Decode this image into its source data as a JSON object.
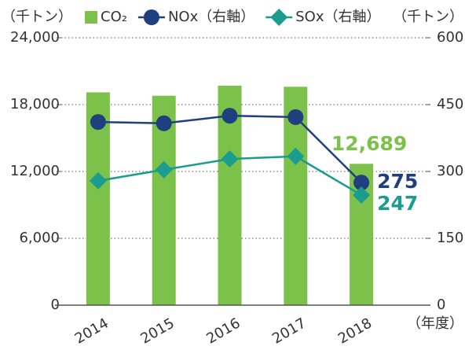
{
  "chart_data": {
    "type": "bar_line",
    "y_label": "（千トン）",
    "y2_label": "（千トン）",
    "x_label": "（年度）",
    "categories": [
      "2014",
      "2015",
      "2016",
      "2017",
      "2018"
    ],
    "series": [
      {
        "name": "CO₂",
        "type": "bar",
        "color": "#7cc24a",
        "values": [
          19100,
          18800,
          19700,
          19600,
          12689
        ],
        "value_labels": [
          null,
          null,
          null,
          null,
          "12,689"
        ]
      },
      {
        "name": "NOx（右軸）",
        "type": "line",
        "marker": "circle",
        "axis": "y2",
        "color": "#1f3f7f",
        "values": [
          411,
          408,
          425,
          422,
          275
        ],
        "value_labels": [
          null,
          null,
          null,
          null,
          "275"
        ]
      },
      {
        "name": "SOx（右軸）",
        "type": "line",
        "marker": "diamond",
        "axis": "y2",
        "color": "#1a9d8e",
        "values": [
          279,
          304,
          328,
          334,
          247
        ],
        "value_labels": [
          null,
          null,
          null,
          null,
          "247"
        ]
      }
    ],
    "ylim": [
      0,
      24000
    ],
    "yticks": [
      0,
      {
        "value": 6000,
        "label": "6,000"
      },
      {
        "value": 12000,
        "label": "12,000"
      },
      {
        "value": 18000,
        "label": "18,000"
      },
      {
        "value": 24000,
        "label": "24,000"
      }
    ],
    "y2lim": [
      0,
      600
    ],
    "y2ticks": [
      0,
      150,
      300,
      450,
      600
    ],
    "grid": true
  }
}
